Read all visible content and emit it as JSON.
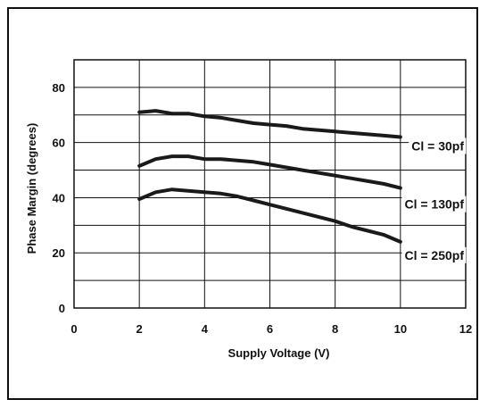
{
  "chart_data": {
    "type": "line",
    "title": "",
    "xlabel": "Supply Voltage (V)",
    "ylabel": "Phase Margin (degrees)",
    "xlim": [
      0,
      12
    ],
    "ylim": [
      0,
      90
    ],
    "xticks": [
      0,
      2,
      4,
      6,
      8,
      10,
      12
    ],
    "yticks": [
      0,
      20,
      40,
      60,
      80
    ],
    "grid": true,
    "series": [
      {
        "name": "Cl = 30pf",
        "x": [
          2,
          2.5,
          3,
          3.5,
          4,
          4.5,
          5,
          5.5,
          6,
          6.5,
          7,
          7.5,
          8,
          8.5,
          9,
          9.5,
          10
        ],
        "y": [
          71,
          71.5,
          70.5,
          70.5,
          69.5,
          69,
          68,
          67,
          66.5,
          66,
          65,
          64.5,
          64,
          63.5,
          63,
          62.5,
          62
        ]
      },
      {
        "name": "Cl = 130pf",
        "x": [
          2,
          2.5,
          3,
          3.5,
          4,
          4.5,
          5,
          5.5,
          6,
          6.5,
          7,
          7.5,
          8,
          8.5,
          9,
          9.5,
          10
        ],
        "y": [
          51.5,
          54,
          55,
          55,
          54,
          54,
          53.5,
          53,
          52,
          51,
          50,
          49,
          48,
          47,
          46,
          45,
          43.5
        ]
      },
      {
        "name": "Cl = 250pf",
        "x": [
          2,
          2.5,
          3,
          3.5,
          4,
          4.5,
          5,
          5.5,
          6,
          6.5,
          7,
          7.5,
          8,
          8.5,
          9,
          9.5,
          10
        ],
        "y": [
          39.5,
          42,
          43,
          42.5,
          42,
          41.5,
          40.5,
          39,
          37.5,
          36,
          34.5,
          33,
          31.5,
          29.5,
          28,
          26.5,
          24
        ]
      }
    ]
  }
}
